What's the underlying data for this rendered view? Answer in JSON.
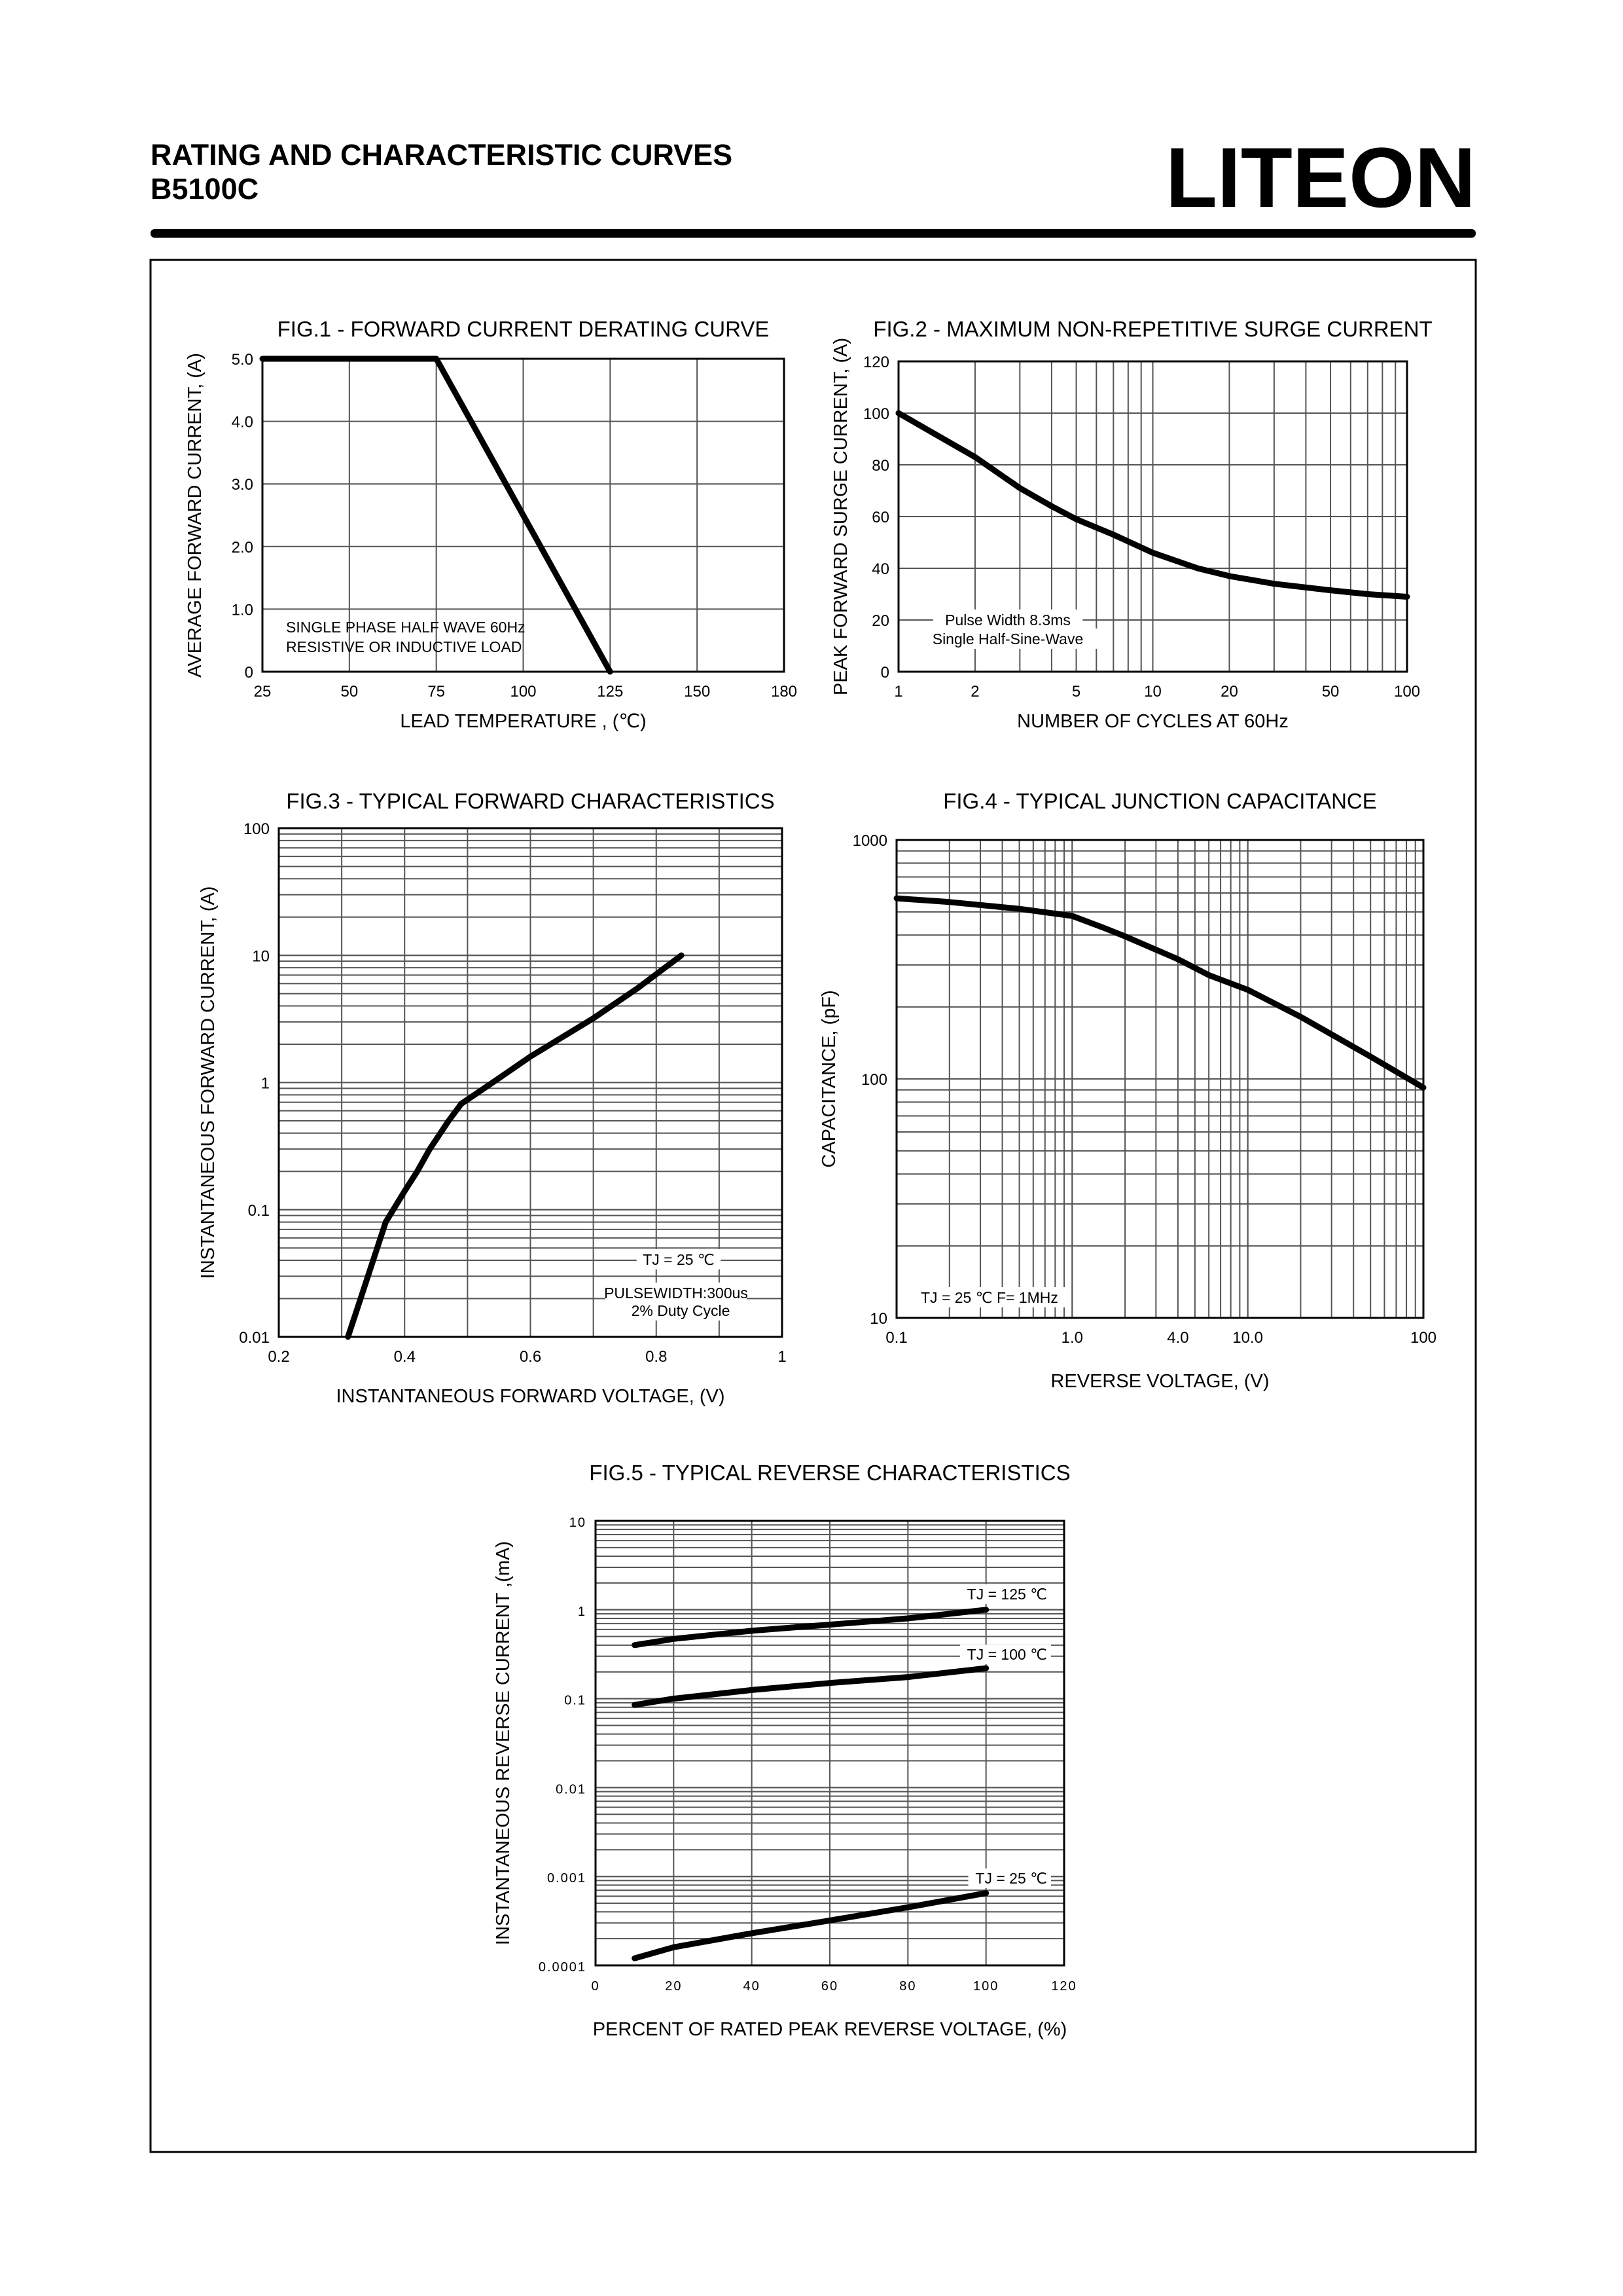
{
  "header": {
    "title": "RATING AND CHARACTERISTIC CURVES",
    "part_number": "B5100C",
    "logo_text": "LITEON",
    "logo_color": "#00AEEF"
  },
  "chart_data": [
    {
      "type": "line",
      "title": "FIG.1 - FORWARD CURRENT DERATING CURVE",
      "xlabel": "LEAD TEMPERATURE , (℃)",
      "ylabel": "AVERAGE FORWARD CURRENT, (A)",
      "x_scale": "category-spaced",
      "y_scale": "linear",
      "xlim": [
        25,
        180
      ],
      "ylim": [
        0,
        5
      ],
      "x_ticks": [
        25,
        50,
        75,
        100,
        125,
        150,
        180
      ],
      "x_tick_labels": [
        "25",
        "50",
        "75",
        "100",
        "125",
        "150",
        "180"
      ],
      "y_ticks": [
        0,
        1,
        2,
        3,
        4,
        5
      ],
      "y_tick_labels": [
        "0",
        "1.0",
        "2.0",
        "3.0",
        "4.0",
        "5.0"
      ],
      "grid": true,
      "series": [
        {
          "x": [
            25,
            75,
            125
          ],
          "y": [
            5,
            5,
            0
          ]
        }
      ],
      "annotations": [
        "SINGLE PHASE HALF WAVE 60Hz",
        "RESISTIVE OR INDUCTIVE LOAD"
      ]
    },
    {
      "type": "line",
      "title": "FIG.2 - MAXIMUM NON-REPETITIVE SURGE CURRENT",
      "xlabel": "NUMBER OF CYCLES AT 60Hz",
      "ylabel": "PEAK FORWARD SURGE CURRENT, (A)",
      "x_scale": "log",
      "y_scale": "linear",
      "xlim": [
        1,
        100
      ],
      "ylim": [
        0,
        120
      ],
      "x_ticks": [
        1,
        2,
        5,
        10,
        20,
        50,
        100
      ],
      "x_tick_labels": [
        "1",
        "2",
        "5",
        "10",
        "20",
        "50",
        "100"
      ],
      "y_ticks": [
        0,
        20,
        40,
        60,
        80,
        100,
        120
      ],
      "y_tick_labels": [
        "0",
        "20",
        "40",
        "60",
        "80",
        "100",
        "120"
      ],
      "grid": true,
      "series": [
        {
          "x": [
            1,
            2,
            3,
            4,
            5,
            7,
            10,
            15,
            20,
            30,
            50,
            70,
            100
          ],
          "y": [
            100,
            83,
            71,
            64,
            59,
            53,
            46,
            40,
            37,
            34,
            31.5,
            30,
            29
          ]
        }
      ],
      "annotations": [
        "Pulse Width 8.3ms",
        "Single Half-Sine-Wave"
      ]
    },
    {
      "type": "line",
      "title": "FIG.3 - TYPICAL FORWARD CHARACTERISTICS",
      "xlabel": "INSTANTANEOUS FORWARD VOLTAGE, (V)",
      "ylabel": "INSTANTANEOUS  FORWARD CURRENT, (A)",
      "x_scale": "linear",
      "y_scale": "log",
      "xlim": [
        0.2,
        1
      ],
      "ylim": [
        0.01,
        100
      ],
      "x_ticks": [
        0.2,
        0.4,
        0.6,
        0.8,
        1
      ],
      "x_tick_labels": [
        "0.2",
        "0.4",
        "0.6",
        "0.8",
        "1"
      ],
      "y_ticks": [
        0.01,
        0.1,
        1,
        10,
        100
      ],
      "y_tick_labels": [
        "0.01",
        "0.1",
        "1",
        "10",
        "100"
      ],
      "grid": true,
      "series": [
        {
          "x": [
            0.31,
            0.33,
            0.35,
            0.37,
            0.4,
            0.42,
            0.44,
            0.47,
            0.49,
            0.54,
            0.6,
            0.7,
            0.77,
            0.84
          ],
          "y": [
            0.01,
            0.02,
            0.04,
            0.08,
            0.14,
            0.2,
            0.3,
            0.5,
            0.68,
            1.0,
            1.6,
            3.2,
            5.5,
            10
          ]
        }
      ],
      "annotations": [
        "TJ = 25 ℃",
        "PULSEWIDTH:300us",
        "2% Duty Cycle"
      ]
    },
    {
      "type": "line",
      "title": "FIG.4 - TYPICAL JUNCTION CAPACITANCE",
      "xlabel": "REVERSE VOLTAGE, (V)",
      "ylabel": "CAPACITANCE, (pF)",
      "x_scale": "log",
      "y_scale": "log",
      "xlim": [
        0.1,
        100
      ],
      "ylim": [
        10,
        1000
      ],
      "x_ticks": [
        0.1,
        1,
        4,
        10,
        100
      ],
      "x_tick_labels": [
        "0.1",
        "1.0",
        "4.0",
        "10.0",
        "100"
      ],
      "y_ticks": [
        10,
        100,
        1000
      ],
      "y_tick_labels": [
        "10",
        "100",
        "1000"
      ],
      "grid": true,
      "series": [
        {
          "x": [
            0.1,
            0.2,
            0.5,
            1,
            1.5,
            2,
            4,
            6,
            10,
            20,
            50,
            100
          ],
          "y": [
            570,
            550,
            515,
            481,
            430,
            395,
            317,
            272,
            236,
            182,
            124,
            92
          ]
        }
      ],
      "annotations": [
        "TJ = 25 ℃ F= 1MHz"
      ]
    },
    {
      "type": "line",
      "title": "FIG.5 - TYPICAL REVERSE CHARACTERISTICS",
      "xlabel": "PERCENT OF RATED PEAK REVERSE VOLTAGE,  (%)",
      "ylabel": "INSTANTANEOUS REVERSE CURRENT ,(mA)",
      "x_scale": "linear",
      "y_scale": "log",
      "xlim": [
        0,
        120
      ],
      "ylim": [
        0.0001,
        10
      ],
      "x_ticks": [
        0,
        20,
        40,
        60,
        80,
        100,
        120
      ],
      "x_tick_labels": [
        "0",
        "20",
        "40",
        "60",
        "80",
        "100",
        "120"
      ],
      "y_ticks": [
        0.0001,
        0.001,
        0.01,
        0.1,
        1,
        10
      ],
      "y_tick_labels": [
        "0.0001",
        "0.001",
        "0.01",
        "0.1",
        "1",
        "10"
      ],
      "grid": true,
      "series": [
        {
          "name": "TJ = 125 ℃",
          "x": [
            10,
            20,
            40,
            60,
            80,
            100
          ],
          "y": [
            0.4,
            0.47,
            0.58,
            0.68,
            0.8,
            1.0
          ]
        },
        {
          "name": "TJ = 100 ℃",
          "x": [
            10,
            20,
            40,
            60,
            80,
            100
          ],
          "y": [
            0.085,
            0.1,
            0.125,
            0.15,
            0.175,
            0.22
          ]
        },
        {
          "name": "TJ = 25 ℃",
          "x": [
            10,
            20,
            40,
            60,
            80,
            100
          ],
          "y": [
            0.00012,
            0.00016,
            0.00023,
            0.00032,
            0.00045,
            0.00065
          ]
        }
      ]
    }
  ]
}
